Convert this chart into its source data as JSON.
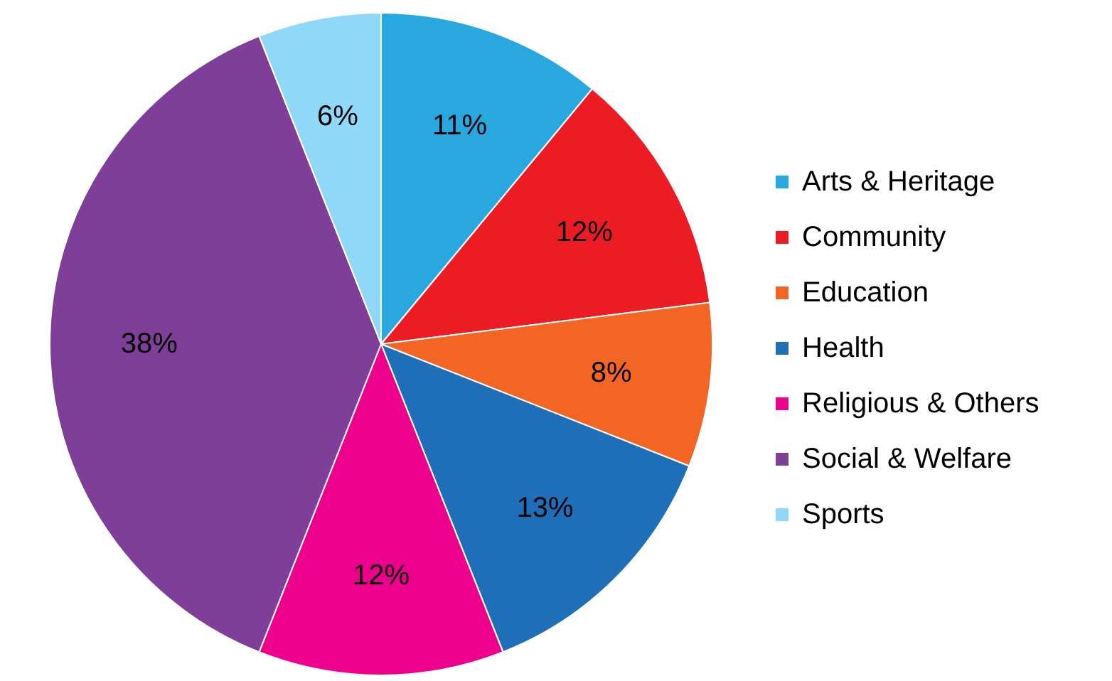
{
  "chart_data": {
    "type": "pie",
    "categories": [
      "Arts & Heritage",
      "Community",
      "Education",
      "Health",
      "Religious & Others",
      "Social & Welfare",
      "Sports"
    ],
    "values": [
      11,
      12,
      8,
      13,
      12,
      38,
      6
    ],
    "value_labels": [
      "11%",
      "12%",
      "8%",
      "13%",
      "12%",
      "38%",
      "6%"
    ],
    "colors": [
      "#29a8e0",
      "#ed1c24",
      "#f26522",
      "#1f6fb8",
      "#ec008c",
      "#7f3f98",
      "#8fd8f8"
    ],
    "legend": "right"
  }
}
